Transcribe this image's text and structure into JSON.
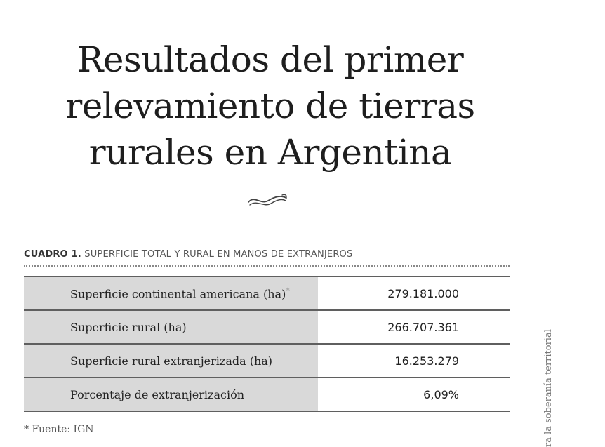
{
  "page": {
    "title_lines": [
      "Resultados del primer",
      "relevamiento de tierras",
      "rurales en Argentina"
    ],
    "ornament_icon": "swash-ornament-icon"
  },
  "table": {
    "caption_bold": "CUADRO 1.",
    "caption_text": " SUPERFICIE TOTAL Y RURAL EN MANOS DE EXTRANJEROS",
    "rows": [
      {
        "label": "Superficie continental americana (ha)",
        "marker": "*",
        "value": "279.181.000"
      },
      {
        "label": "Superficie rural (ha)",
        "marker": "",
        "value": "266.707.361"
      },
      {
        "label": "Superficie rural extranjerizada (ha)",
        "marker": "",
        "value": "16.253.279"
      },
      {
        "label": "Porcentaje de extranjerización",
        "marker": "",
        "value": "6,09%"
      }
    ],
    "footnote": "* Fuente: IGN"
  },
  "side_text": "ra la soberanía territorial",
  "colors": {
    "label_cell_bg": "#d9d9d9",
    "rule": "#5f5f5f",
    "caption": "#555555"
  }
}
